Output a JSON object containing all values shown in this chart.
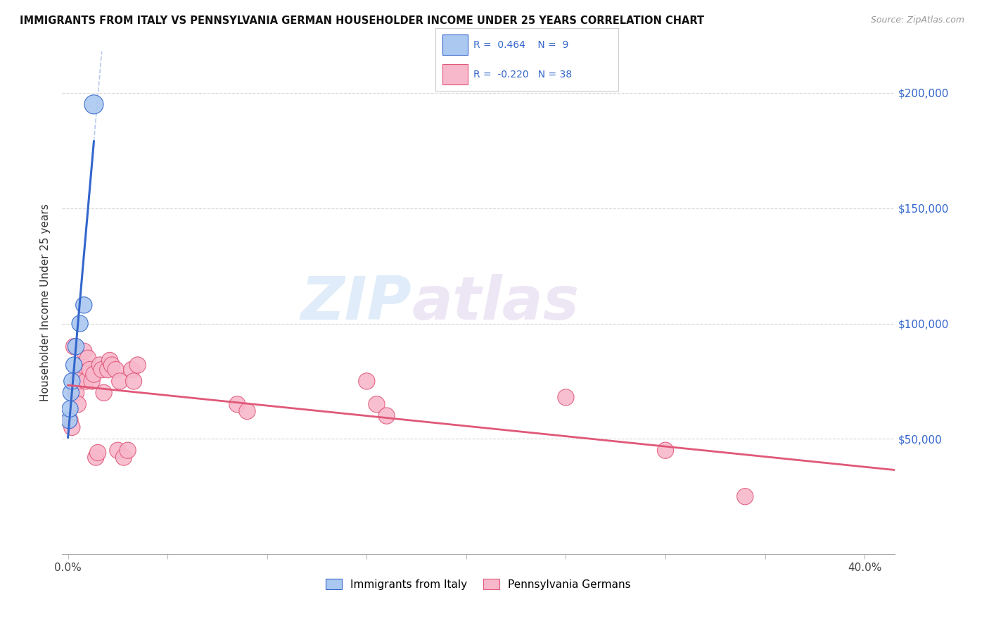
{
  "title": "IMMIGRANTS FROM ITALY VS PENNSYLVANIA GERMAN HOUSEHOLDER INCOME UNDER 25 YEARS CORRELATION CHART",
  "source": "Source: ZipAtlas.com",
  "ylabel": "Householder Income Under 25 years",
  "y_tick_values": [
    50000,
    100000,
    150000,
    200000
  ],
  "xlim": [
    -0.003,
    0.415
  ],
  "ylim": [
    0,
    218000
  ],
  "legend_labels": [
    "Immigrants from Italy",
    "Pennsylvania Germans"
  ],
  "italy_R": "0.464",
  "italy_N": "9",
  "germany_R": "-0.220",
  "germany_N": "38",
  "italy_line_color": "#3366cc",
  "italy_scatter_face": "#aac8f0",
  "italy_scatter_edge": "#3366cc",
  "germany_line_color": "#e05878",
  "germany_scatter_face": "#f8b8cc",
  "germany_scatter_edge": "#e05878",
  "background_color": "#ffffff",
  "grid_color": "#cccccc",
  "watermark_zip": "ZIP",
  "watermark_atlas": "atlas",
  "italy_x": [
    0.0005,
    0.001,
    0.0015,
    0.002,
    0.003,
    0.004,
    0.006,
    0.008,
    0.013
  ],
  "italy_y": [
    58000,
    63000,
    70000,
    75000,
    82000,
    90000,
    100000,
    108000,
    195000
  ],
  "germany_x": [
    0.001,
    0.002,
    0.003,
    0.004,
    0.005,
    0.005,
    0.006,
    0.007,
    0.008,
    0.009,
    0.01,
    0.011,
    0.012,
    0.013,
    0.014,
    0.015,
    0.016,
    0.017,
    0.018,
    0.02,
    0.021,
    0.022,
    0.024,
    0.025,
    0.026,
    0.028,
    0.03,
    0.032,
    0.033,
    0.035,
    0.085,
    0.09,
    0.15,
    0.155,
    0.16,
    0.25,
    0.3,
    0.34
  ],
  "germany_y": [
    58000,
    55000,
    90000,
    70000,
    65000,
    75000,
    78000,
    82000,
    88000,
    75000,
    85000,
    80000,
    75000,
    78000,
    42000,
    44000,
    82000,
    80000,
    70000,
    80000,
    84000,
    82000,
    80000,
    45000,
    75000,
    42000,
    45000,
    80000,
    75000,
    82000,
    65000,
    62000,
    75000,
    65000,
    60000,
    68000,
    45000,
    25000
  ],
  "italy_dot_sizes": [
    280,
    280,
    280,
    280,
    280,
    280,
    280,
    280,
    380
  ],
  "germany_dot_sizes": [
    280,
    280,
    280,
    280,
    280,
    280,
    280,
    280,
    280,
    280,
    280,
    280,
    280,
    280,
    280,
    280,
    280,
    280,
    280,
    280,
    280,
    280,
    280,
    280,
    280,
    280,
    280,
    280,
    280,
    280,
    280,
    280,
    280,
    280,
    280,
    280,
    280,
    280
  ]
}
